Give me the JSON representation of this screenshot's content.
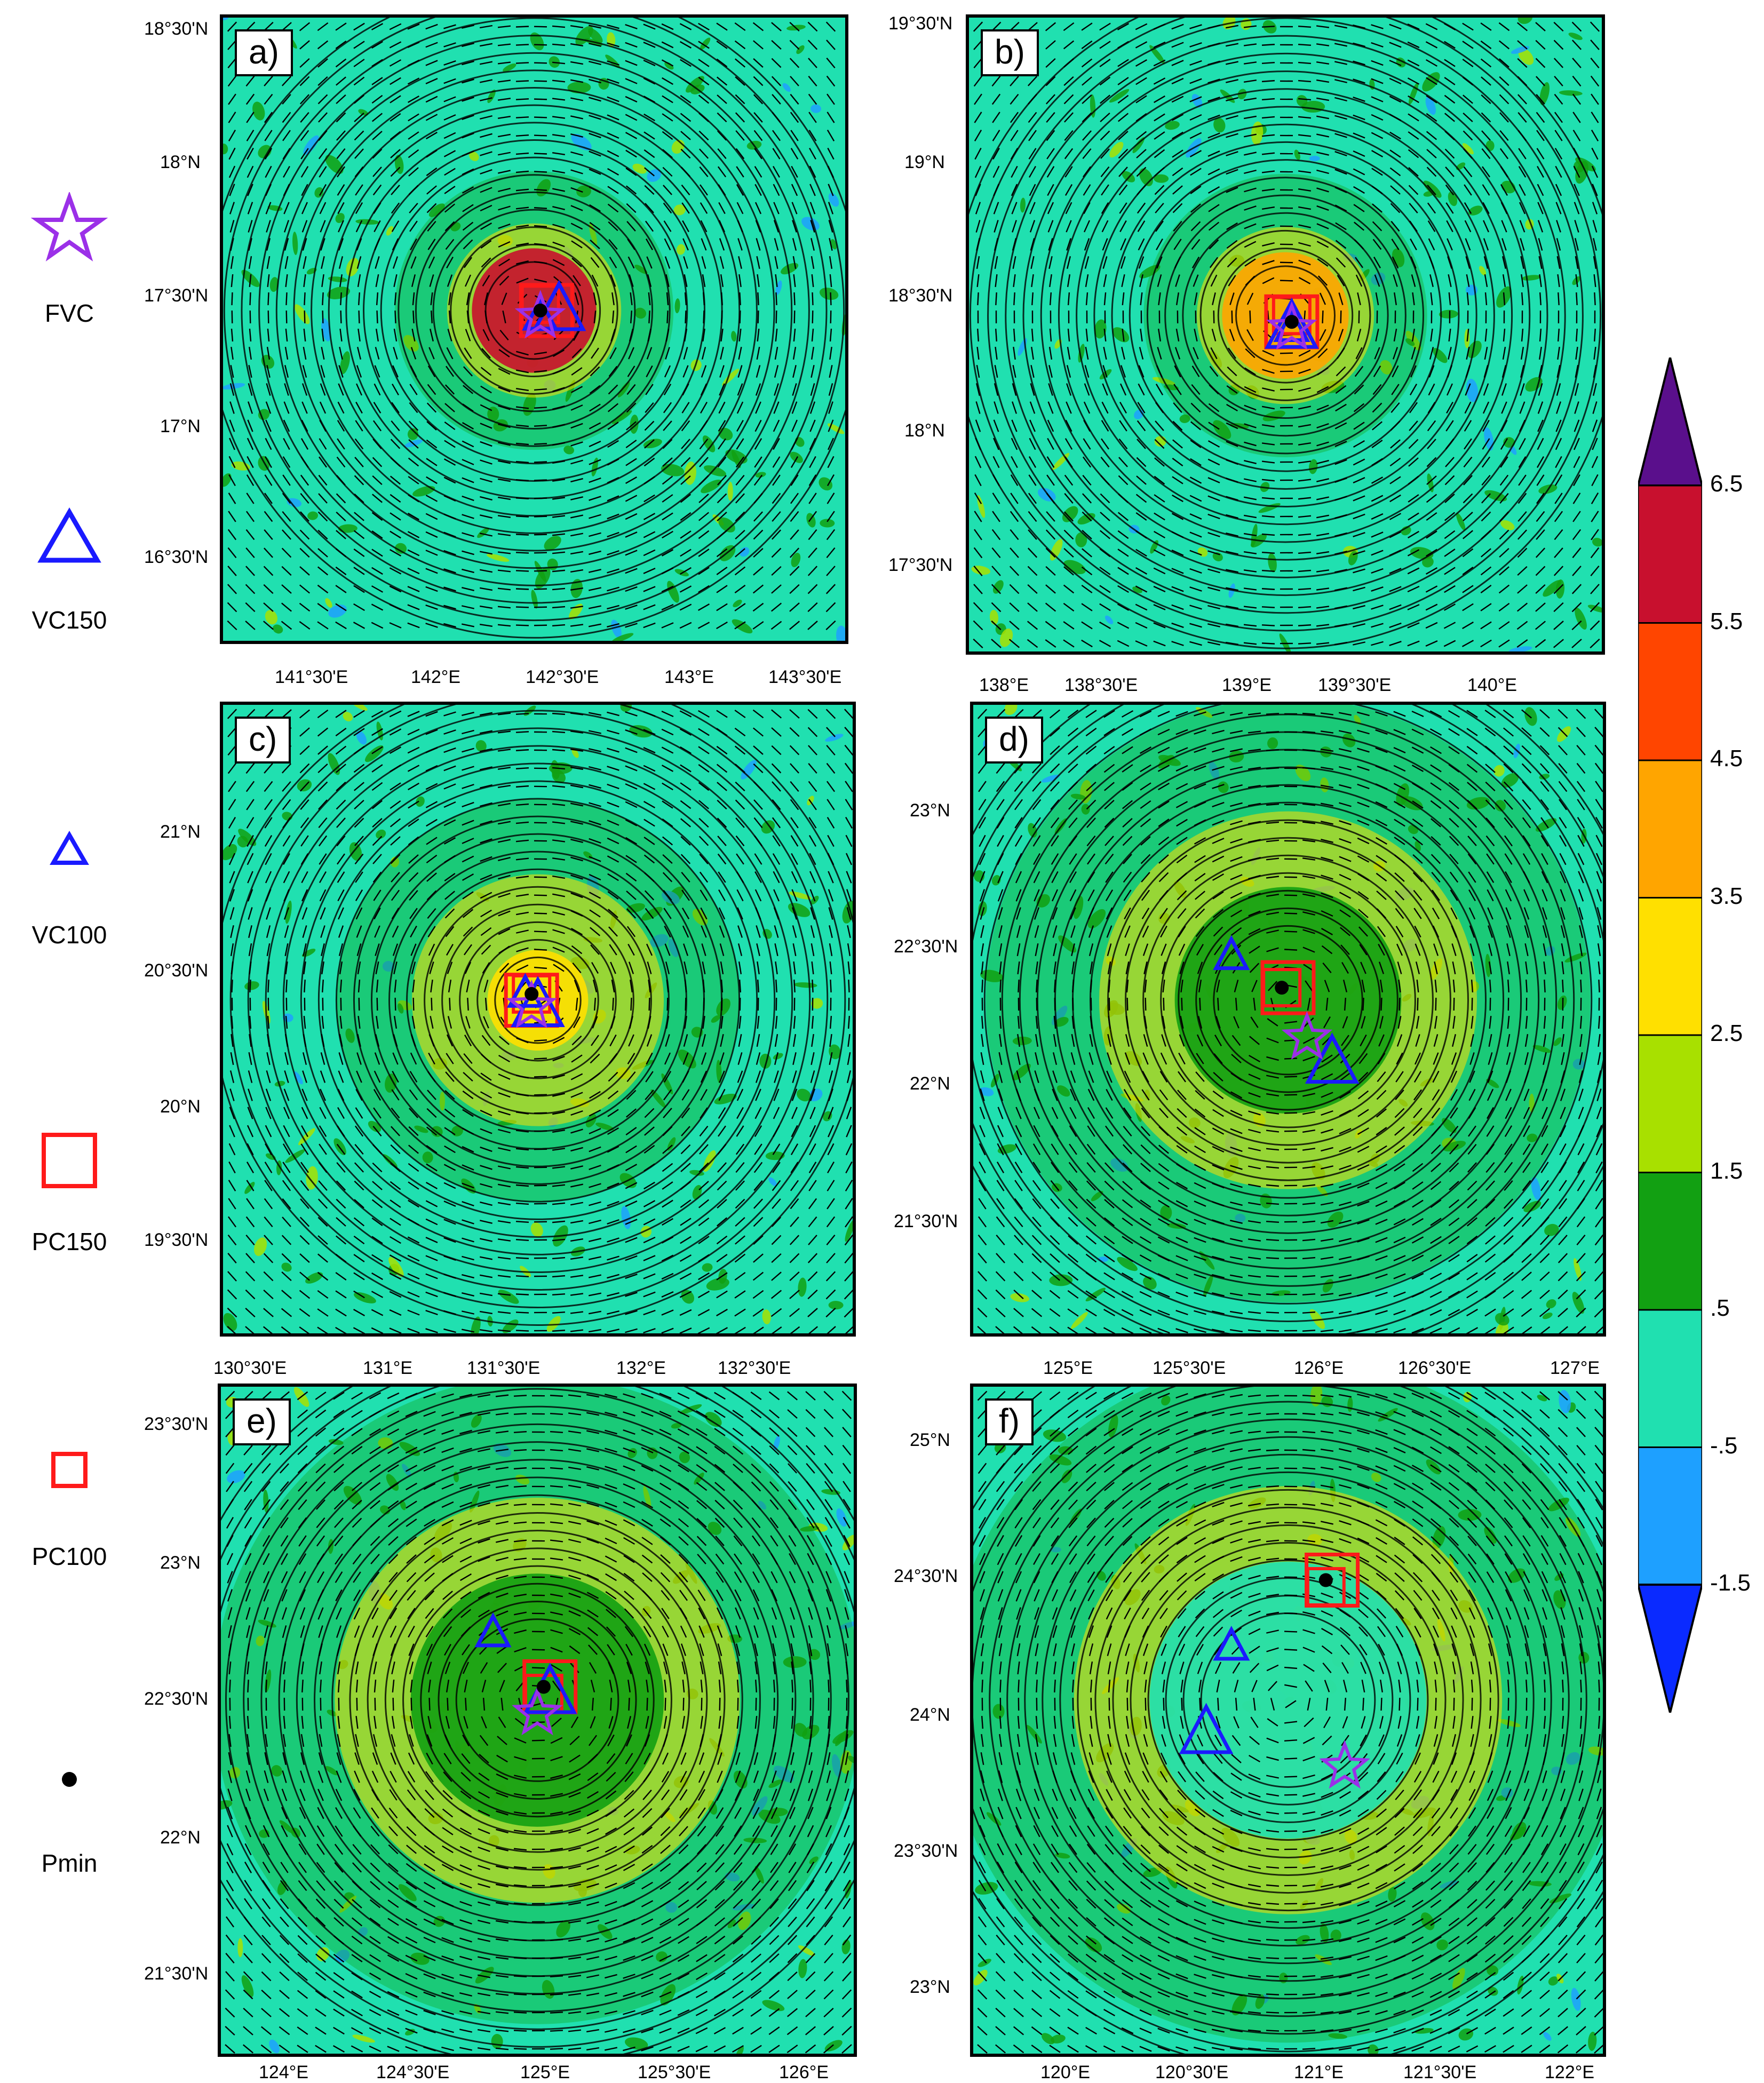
{
  "legend": [
    {
      "name": "fvc",
      "label": "FVC",
      "shape": "star",
      "color": "#9b30e8"
    },
    {
      "name": "vc150",
      "label": "VC150",
      "shape": "triangle-large",
      "color": "#1a1aff"
    },
    {
      "name": "vc100",
      "label": "VC100",
      "shape": "triangle-small",
      "color": "#1a1aff"
    },
    {
      "name": "pc150",
      "label": "PC150",
      "shape": "square-large",
      "color": "#ff1a1a"
    },
    {
      "name": "pc100",
      "label": "PC100",
      "shape": "square-small",
      "color": "#ff1a1a"
    },
    {
      "name": "pmin",
      "label": "Pmin",
      "shape": "dot",
      "color": "#000000"
    }
  ],
  "colorbar": {
    "levels": [
      "6.5",
      "5.5",
      "4.5",
      "3.5",
      "2.5",
      "1.5",
      ".5",
      "-.5",
      "-1.5"
    ],
    "colors": [
      "#5a0f8c",
      "#c8102e",
      "#ff4500",
      "#ffa500",
      "#ffe000",
      "#a8e000",
      "#12a012",
      "#20e0b0",
      "#1ea0ff",
      "#0a2aff"
    ]
  },
  "panels": [
    {
      "id": "a",
      "label": "a)",
      "lat_labels": [
        "18°30'N",
        "18°N",
        "17°30'N",
        "17°N",
        "16°30'N"
      ],
      "lon_labels": [
        "141°30'E",
        "142°E",
        "142°30'E",
        "143°E",
        "143°30'E"
      ],
      "center_fill": "#c8102e",
      "inner_radius": 0.1,
      "ring_radius": 0.14,
      "markers": {
        "pc150": [
          0.52,
          0.47
        ],
        "pc100": [
          0.51,
          0.46
        ],
        "vc150": [
          0.54,
          0.47
        ],
        "vc100": [
          0.51,
          0.48
        ],
        "fvc": [
          0.51,
          0.48
        ],
        "pmin": [
          0.51,
          0.47
        ]
      }
    },
    {
      "id": "b",
      "label": "b)",
      "lat_labels": [
        "19°30'N",
        "19°N",
        "18°30'N",
        "18°N",
        "17°30'N"
      ],
      "lon_labels": [
        "138°E",
        "138°30'E",
        "139°E",
        "139°30'E",
        "140°E"
      ],
      "center_fill": "#ffa500",
      "inner_radius": 0.1,
      "ring_radius": 0.14,
      "markers": {
        "pc150": [
          0.51,
          0.48
        ],
        "pc100": [
          0.51,
          0.47
        ],
        "vc150": [
          0.51,
          0.49
        ],
        "vc100": [
          0.51,
          0.49
        ],
        "fvc": [
          0.51,
          0.49
        ],
        "pmin": [
          0.51,
          0.48
        ]
      }
    },
    {
      "id": "c",
      "label": "c)",
      "lat_labels": [
        "21°N",
        "20°30'N",
        "20°N",
        "19°30'N"
      ],
      "lon_labels": [
        "130°30'E",
        "131°E",
        "131°30'E",
        "132°E",
        "132°30'E"
      ],
      "center_fill": "#ffe000",
      "inner_radius": 0.08,
      "ring_radius": 0.2,
      "markers": {
        "pc150": [
          0.49,
          0.47
        ],
        "pc100": [
          0.49,
          0.46
        ],
        "vc150": [
          0.5,
          0.48
        ],
        "vc100": [
          0.48,
          0.46
        ],
        "fvc": [
          0.49,
          0.48
        ],
        "pmin": [
          0.49,
          0.46
        ]
      }
    },
    {
      "id": "d",
      "label": "d)",
      "lat_labels": [
        "23°N",
        "22°30'N",
        "22°N",
        "21°30'N"
      ],
      "lon_labels": [
        "125°E",
        "125°30'E",
        "126°E",
        "126°30'E",
        "127°E"
      ],
      "center_fill": "#12a012",
      "inner_radius": 0.18,
      "ring_radius": 0.3,
      "markers": {
        "pc150": [
          0.5,
          0.45
        ],
        "pc100": [
          0.49,
          0.45
        ],
        "vc150": [
          0.57,
          0.57
        ],
        "vc100": [
          0.41,
          0.4
        ],
        "fvc": [
          0.53,
          0.53
        ],
        "pmin": [
          0.49,
          0.45
        ]
      }
    },
    {
      "id": "e",
      "label": "e)",
      "lat_labels": [
        "23°30'N",
        "23°N",
        "22°30'N",
        "22°N",
        "21°30'N"
      ],
      "lon_labels": [
        "124°E",
        "124°30'E",
        "125°E",
        "125°30'E",
        "126°E"
      ],
      "center_fill": "#12a012",
      "inner_radius": 0.2,
      "ring_radius": 0.32,
      "markers": {
        "pc150": [
          0.52,
          0.45
        ],
        "pc100": [
          0.51,
          0.46
        ],
        "vc150": [
          0.52,
          0.46
        ],
        "vc100": [
          0.43,
          0.37
        ],
        "fvc": [
          0.5,
          0.49
        ],
        "pmin": [
          0.51,
          0.45
        ]
      }
    },
    {
      "id": "f",
      "label": "f)",
      "lat_labels": [
        "25°N",
        "24°30'N",
        "24°N",
        "23°30'N",
        "23°N"
      ],
      "lon_labels": [
        "120°E",
        "120°30'E",
        "121°E",
        "121°30'E",
        "122°E"
      ],
      "center_fill": "#20e0b0",
      "inner_radius": 0.22,
      "ring_radius": 0.34,
      "markers": {
        "pc150": [
          0.57,
          0.29
        ],
        "pc100": [
          0.56,
          0.3
        ],
        "vc150": [
          0.37,
          0.52
        ],
        "vc100": [
          0.41,
          0.39
        ],
        "fvc": [
          0.59,
          0.57
        ],
        "pmin": [
          0.56,
          0.29
        ]
      }
    }
  ]
}
